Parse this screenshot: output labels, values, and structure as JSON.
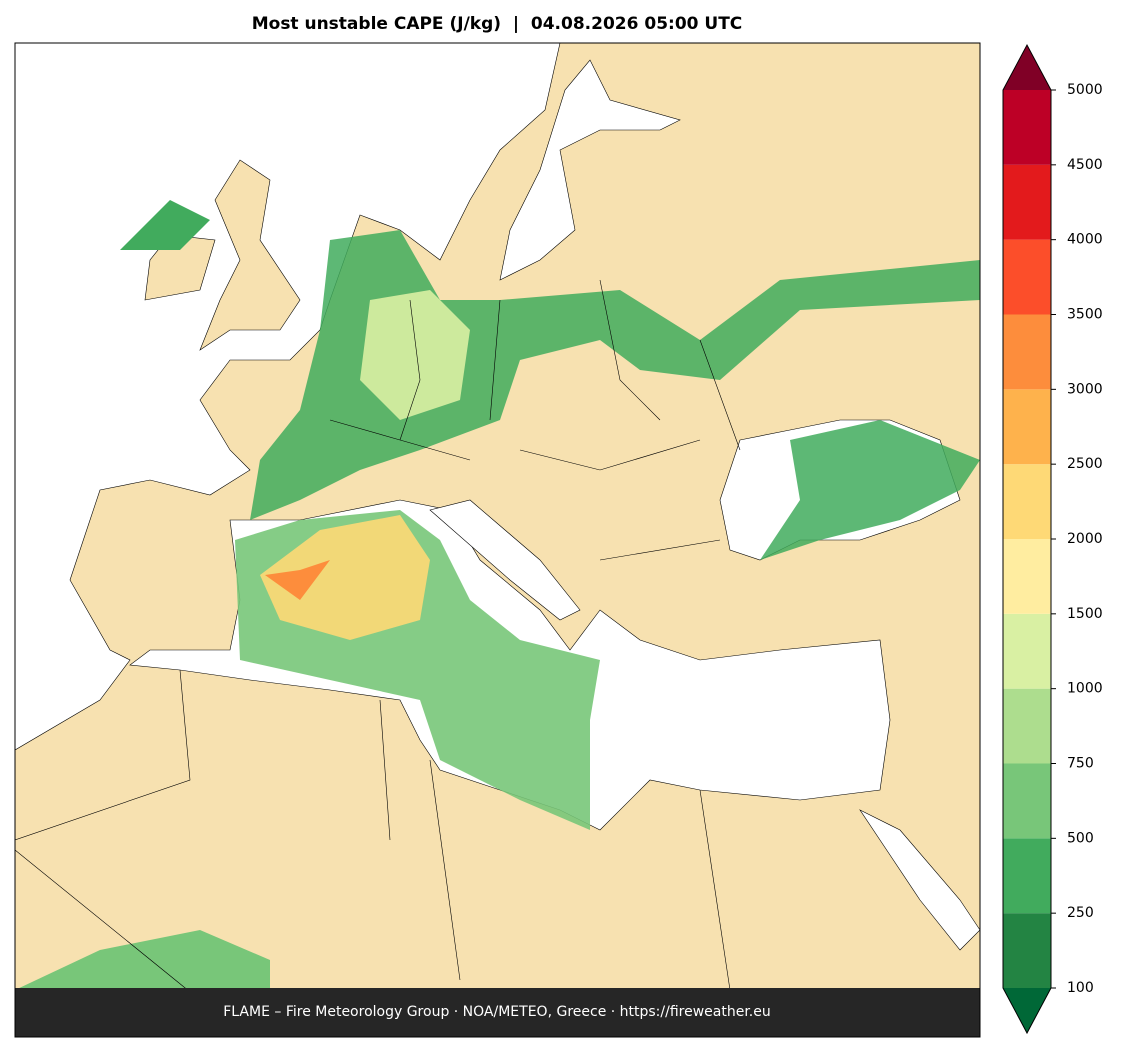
{
  "title": "Most unstable CAPE (J/kg)  |  04.08.2026 05:00 UTC",
  "colorbar": {
    "ticks": [
      100,
      250,
      500,
      750,
      1000,
      1500,
      2000,
      2500,
      3000,
      3500,
      4000,
      4500,
      5000
    ],
    "colors": [
      "#238443",
      "#41ab5d",
      "#78c679",
      "#addd8e",
      "#d9f0a3",
      "#ffeda0",
      "#fed976",
      "#feb24c",
      "#fd8d3c",
      "#fc4e2a",
      "#e31a1c",
      "#bd0026"
    ],
    "under_color": "#006837",
    "over_color": "#800026"
  },
  "footer": "FLAME – Fire Meteorology Group · NOA/METEO, Greece · https://fireweather.eu"
}
